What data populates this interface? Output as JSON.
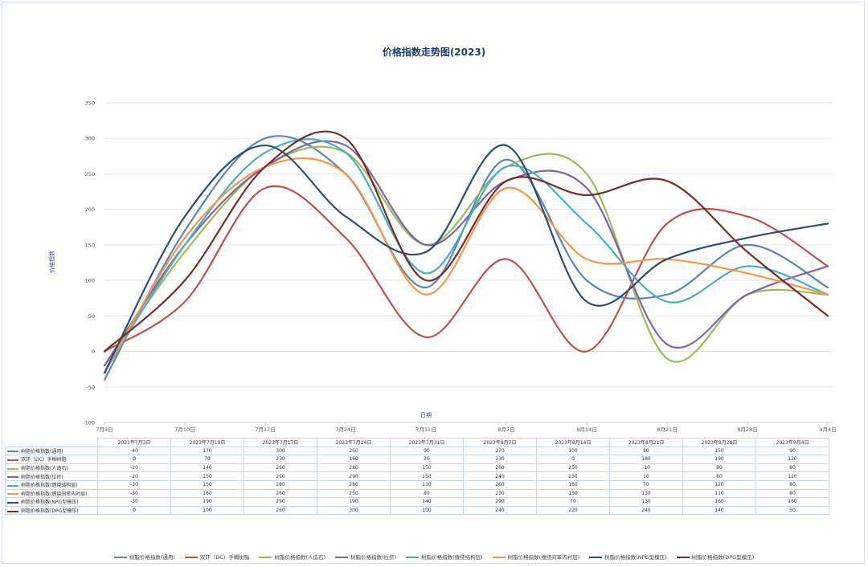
{
  "chart_data": {
    "type": "line",
    "title": "价格指数走势图(2023)",
    "xlabel": "日期",
    "ylabel": "价格指数",
    "ylim": [
      -100,
      350
    ],
    "yticks": [
      "-100",
      "-50",
      "0",
      "50",
      "100",
      "150",
      "200",
      "250",
      "300",
      "350"
    ],
    "categories": [
      "7月3日",
      "7月10日",
      "7月17日",
      "7月24日",
      "7月31日",
      "8月7日",
      "8月14日",
      "8月21日",
      "8月28日",
      "9月4日"
    ],
    "table_dates": [
      "2023年7月3日",
      "2023年7月10日",
      "2023年7月17日",
      "2023年7月24日",
      "2023年7月31日",
      "2023年8月7日",
      "2023年8月14日",
      "2023年8月21日",
      "2023年8月28日",
      "2023年9月4日"
    ],
    "legend_position": "bottom",
    "grid": true,
    "series": [
      {
        "name": "树脂价格指数(通用)",
        "color": "#5b86b7",
        "values": [
          -40,
          170,
          300,
          250,
          90,
          270,
          100,
          80,
          150,
          90
        ]
      },
      {
        "name": "双环（DC）手糊树脂",
        "color": "#c0504d",
        "values": [
          0,
          70,
          230,
          160,
          20,
          130,
          0,
          180,
          190,
          120
        ]
      },
      {
        "name": "树脂价格指数(人造石)",
        "color": "#9bbb59",
        "values": [
          -20,
          140,
          260,
          280,
          150,
          260,
          250,
          -10,
          80,
          80
        ]
      },
      {
        "name": "树脂价格指数(拉挤)",
        "color": "#8064a2",
        "values": [
          -20,
          150,
          260,
          290,
          150,
          240,
          230,
          10,
          80,
          120
        ]
      },
      {
        "name": "树脂价格指数(缠绕结构层)",
        "color": "#4bacc6",
        "values": [
          -30,
          150,
          280,
          280,
          110,
          260,
          180,
          70,
          120,
          80
        ]
      },
      {
        "name": "树脂价格指数(缠绕间苯内衬层)",
        "color": "#f79646",
        "values": [
          -30,
          160,
          260,
          250,
          80,
          230,
          130,
          130,
          110,
          80
        ]
      },
      {
        "name": "树脂价格指数(NPG型模压)",
        "color": "#2c4d75",
        "values": [
          -30,
          190,
          290,
          190,
          140,
          290,
          70,
          130,
          160,
          180
        ]
      },
      {
        "name": "树脂价格指数(DPG型模压)",
        "color": "#772c2a",
        "values": [
          0,
          100,
          260,
          300,
          100,
          240,
          220,
          240,
          140,
          50
        ]
      }
    ]
  }
}
